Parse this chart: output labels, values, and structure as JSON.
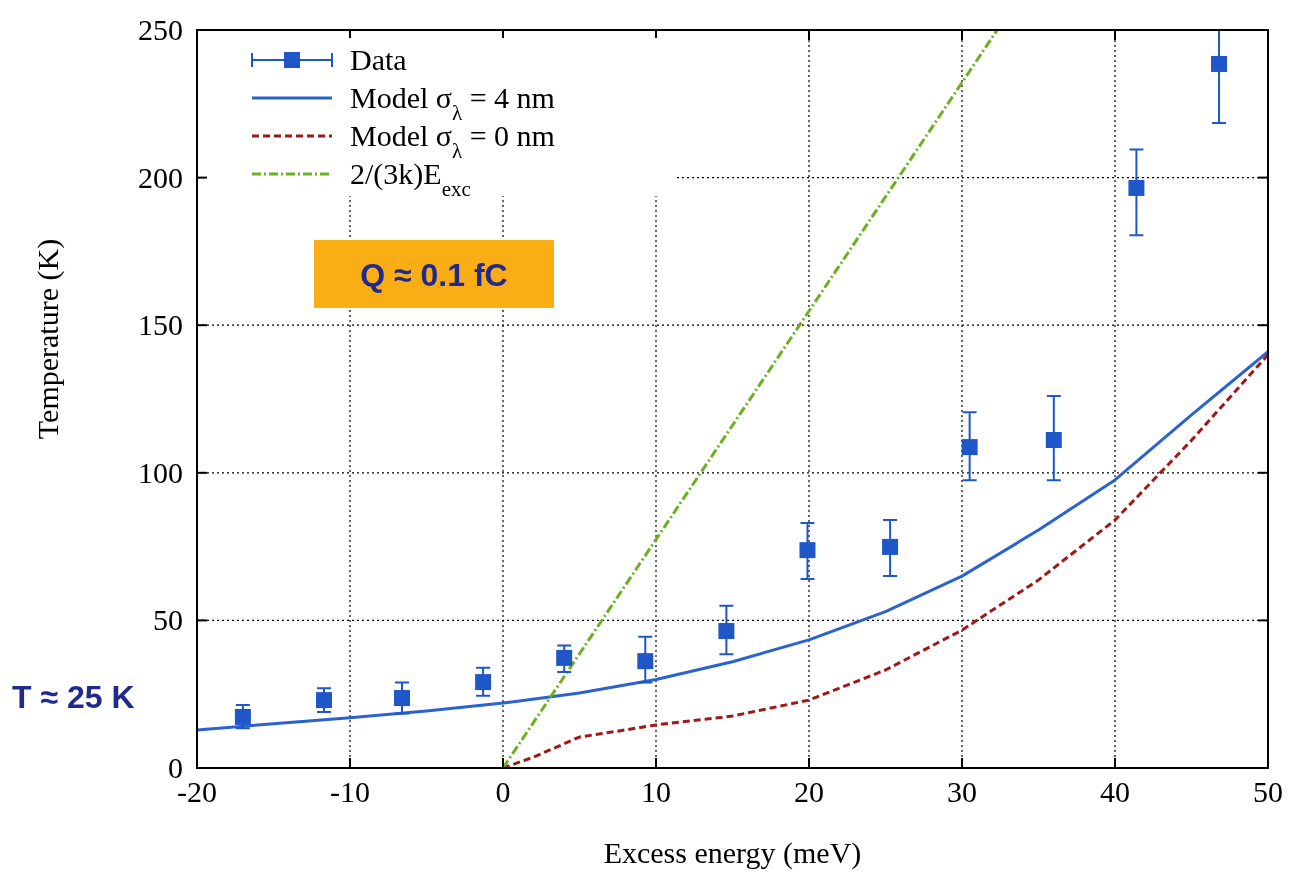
{
  "chart_data": {
    "type": "line",
    "xlabel": "Excess energy (meV)",
    "ylabel": "Temperature (K)",
    "xlim": [
      -20,
      50
    ],
    "xticks": [
      -20,
      -10,
      0,
      10,
      20,
      30,
      40,
      50
    ],
    "ylim": [
      0,
      250
    ],
    "yticks": [
      0,
      50,
      100,
      150,
      200,
      250
    ],
    "grid": true,
    "legend": "top left",
    "series": [
      {
        "name": "Data",
        "type": "scatter",
        "color": "#1f57c8",
        "marker": "square",
        "x": [
          -17.0,
          -11.7,
          -6.6,
          -1.3,
          4.0,
          9.3,
          14.6,
          19.9,
          25.3,
          30.5,
          36.0,
          41.4,
          46.8
        ],
        "values": [
          17.3,
          23.0,
          23.7,
          29.1,
          37.3,
          36.2,
          46.4,
          73.8,
          74.9,
          108.7,
          111.1,
          196.5,
          238.5
        ],
        "errors": [
          [
            13.5,
            21.3
          ],
          [
            19,
            27
          ],
          [
            18.5,
            29
          ],
          [
            24.5,
            34
          ],
          [
            32.5,
            41.5
          ],
          [
            29,
            44.5
          ],
          [
            38.5,
            55
          ],
          [
            64,
            83
          ],
          [
            65,
            84
          ],
          [
            97.5,
            120.5
          ],
          [
            97.5,
            126
          ],
          [
            180.5,
            209.5
          ],
          [
            218.5,
            250
          ]
        ]
      },
      {
        "name": "Model σ$_{λ}$ = 4 nm",
        "color": "#2a63d0",
        "line_style": "solid",
        "x": [
          -20,
          -15,
          -10,
          -5,
          0,
          5,
          10,
          15,
          20,
          25,
          30,
          35,
          40,
          45,
          50
        ],
        "values": [
          12.9,
          15,
          17,
          19.3,
          22,
          25.4,
          30,
          36,
          43.4,
          53,
          65,
          80.6,
          97.6,
          119.6,
          141
        ]
      },
      {
        "name": "Model σ$_{λ}$ = 0 nm",
        "color": "#a01818",
        "line_style": "dashed",
        "x": [
          0,
          2,
          5,
          8,
          10,
          15,
          20,
          25,
          30,
          35,
          40,
          45,
          50
        ],
        "values": [
          0,
          3.7,
          10.5,
          12.9,
          14.6,
          17.6,
          23,
          33.2,
          46.7,
          63.7,
          84,
          111,
          140
        ]
      },
      {
        "name": "2/(3k)E$_{exc}$",
        "color": "#6cb020",
        "line_style": "dashdot",
        "x": [
          0,
          32.3
        ],
        "values": [
          0,
          250
        ]
      }
    ],
    "annotations": [
      "Q ≈ 0.1 fC",
      "T ≈ 25 K"
    ]
  }
}
